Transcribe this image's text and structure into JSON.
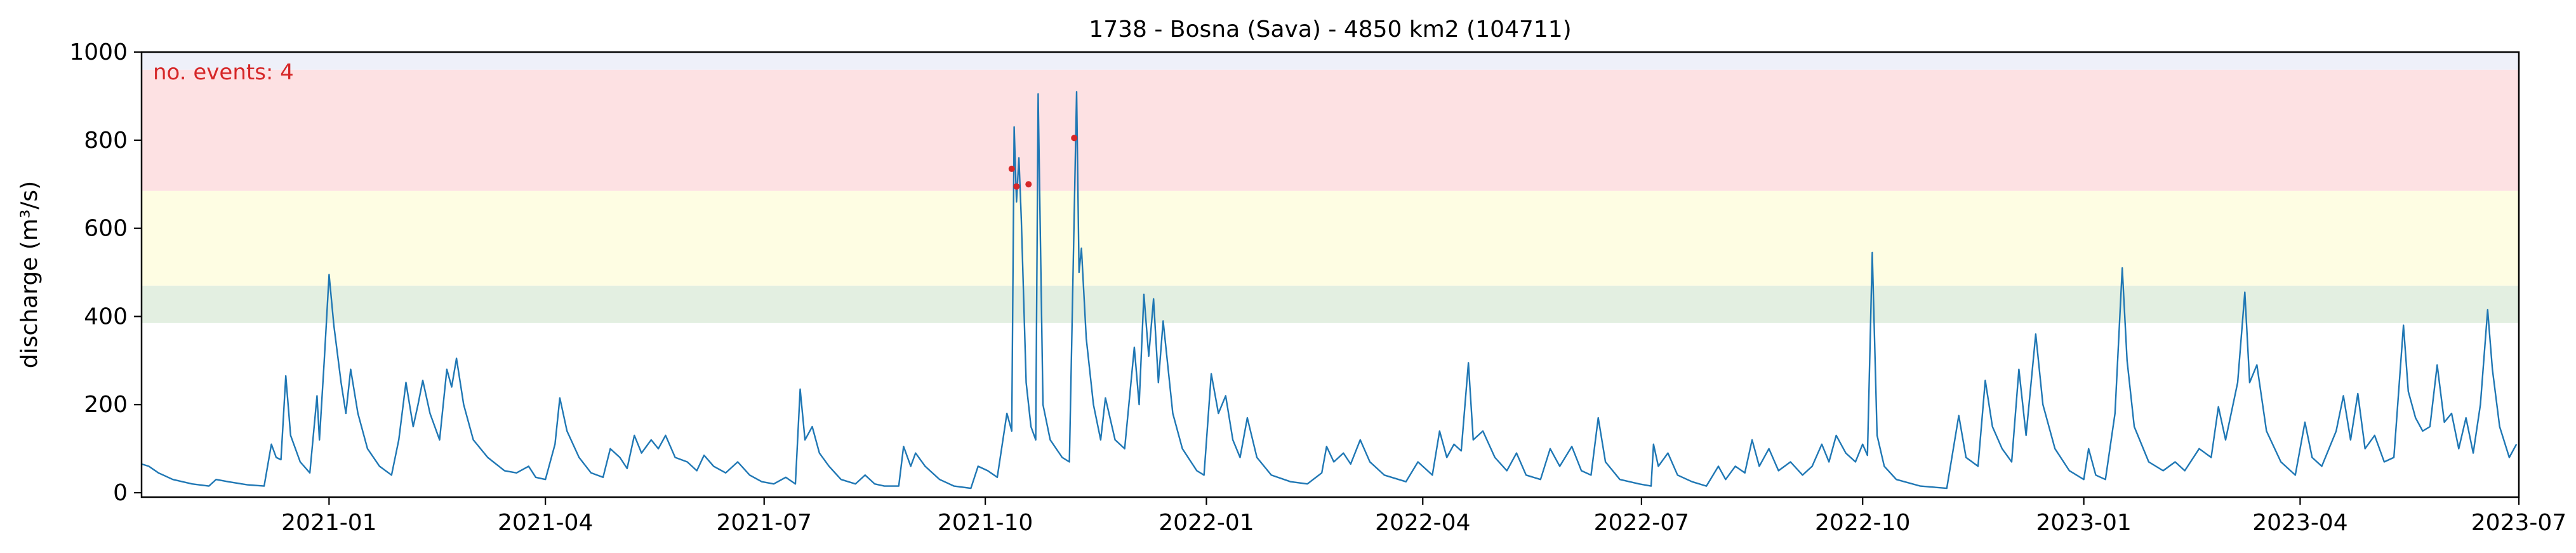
{
  "chart_data": {
    "type": "line",
    "title": "1738 - Bosna (Sava) - 4850 km2 (104711)",
    "xlabel": "",
    "ylabel": "discharge (m³/s)",
    "annotation": "no. events: 4",
    "xlim": [
      "2020-10-15",
      "2023-07-01"
    ],
    "ylim": [
      -10,
      1000
    ],
    "yticks": [
      0,
      200,
      400,
      600,
      800,
      1000
    ],
    "xticks": [
      "2021-01",
      "2021-04",
      "2021-07",
      "2021-10",
      "2022-01",
      "2022-04",
      "2022-07",
      "2022-10",
      "2023-01",
      "2023-04",
      "2023-07"
    ],
    "grid": false,
    "threshold_bands": [
      {
        "from": 385,
        "to": 470,
        "color": "#e3efe1"
      },
      {
        "from": 470,
        "to": 685,
        "color": "#fefde3"
      },
      {
        "from": 685,
        "to": 960,
        "color": "#fde1e3"
      },
      {
        "from": 960,
        "to": 1000,
        "color": "#eef0f9"
      }
    ],
    "series": [
      {
        "color": "#1f77b4",
        "points": [
          [
            "2020-10-15",
            65
          ],
          [
            "2020-10-18",
            60
          ],
          [
            "2020-10-22",
            45
          ],
          [
            "2020-10-28",
            30
          ],
          [
            "2020-11-05",
            20
          ],
          [
            "2020-11-12",
            15
          ],
          [
            "2020-11-15",
            30
          ],
          [
            "2020-11-20",
            25
          ],
          [
            "2020-11-28",
            18
          ],
          [
            "2020-12-05",
            15
          ],
          [
            "2020-12-08",
            110
          ],
          [
            "2020-12-10",
            80
          ],
          [
            "2020-12-12",
            75
          ],
          [
            "2020-12-14",
            265
          ],
          [
            "2020-12-16",
            130
          ],
          [
            "2020-12-20",
            70
          ],
          [
            "2020-12-24",
            45
          ],
          [
            "2020-12-27",
            220
          ],
          [
            "2020-12-28",
            120
          ],
          [
            "2020-12-30",
            300
          ],
          [
            "2021-01-01",
            495
          ],
          [
            "2021-01-03",
            380
          ],
          [
            "2021-01-06",
            250
          ],
          [
            "2021-01-08",
            180
          ],
          [
            "2021-01-10",
            280
          ],
          [
            "2021-01-13",
            180
          ],
          [
            "2021-01-17",
            100
          ],
          [
            "2021-01-22",
            60
          ],
          [
            "2021-01-27",
            40
          ],
          [
            "2021-01-30",
            120
          ],
          [
            "2021-02-02",
            250
          ],
          [
            "2021-02-05",
            150
          ],
          [
            "2021-02-07",
            200
          ],
          [
            "2021-02-09",
            255
          ],
          [
            "2021-02-12",
            180
          ],
          [
            "2021-02-16",
            120
          ],
          [
            "2021-02-19",
            280
          ],
          [
            "2021-02-21",
            240
          ],
          [
            "2021-02-23",
            305
          ],
          [
            "2021-02-26",
            200
          ],
          [
            "2021-03-02",
            120
          ],
          [
            "2021-03-08",
            80
          ],
          [
            "2021-03-15",
            50
          ],
          [
            "2021-03-20",
            45
          ],
          [
            "2021-03-25",
            60
          ],
          [
            "2021-03-28",
            35
          ],
          [
            "2021-04-01",
            30
          ],
          [
            "2021-04-05",
            110
          ],
          [
            "2021-04-07",
            215
          ],
          [
            "2021-04-10",
            140
          ],
          [
            "2021-04-15",
            80
          ],
          [
            "2021-04-20",
            45
          ],
          [
            "2021-04-25",
            35
          ],
          [
            "2021-04-28",
            100
          ],
          [
            "2021-05-02",
            80
          ],
          [
            "2021-05-05",
            55
          ],
          [
            "2021-05-08",
            130
          ],
          [
            "2021-05-11",
            90
          ],
          [
            "2021-05-15",
            120
          ],
          [
            "2021-05-18",
            100
          ],
          [
            "2021-05-21",
            130
          ],
          [
            "2021-05-25",
            80
          ],
          [
            "2021-05-30",
            70
          ],
          [
            "2021-06-03",
            50
          ],
          [
            "2021-06-06",
            85
          ],
          [
            "2021-06-10",
            60
          ],
          [
            "2021-06-15",
            45
          ],
          [
            "2021-06-20",
            70
          ],
          [
            "2021-06-25",
            40
          ],
          [
            "2021-06-30",
            25
          ],
          [
            "2021-07-05",
            20
          ],
          [
            "2021-07-10",
            35
          ],
          [
            "2021-07-14",
            20
          ],
          [
            "2021-07-16",
            235
          ],
          [
            "2021-07-18",
            120
          ],
          [
            "2021-07-21",
            150
          ],
          [
            "2021-07-24",
            90
          ],
          [
            "2021-07-28",
            60
          ],
          [
            "2021-08-02",
            30
          ],
          [
            "2021-08-08",
            20
          ],
          [
            "2021-08-12",
            40
          ],
          [
            "2021-08-16",
            20
          ],
          [
            "2021-08-20",
            15
          ],
          [
            "2021-08-26",
            15
          ],
          [
            "2021-08-28",
            105
          ],
          [
            "2021-08-31",
            60
          ],
          [
            "2021-09-02",
            90
          ],
          [
            "2021-09-06",
            60
          ],
          [
            "2021-09-12",
            30
          ],
          [
            "2021-09-18",
            15
          ],
          [
            "2021-09-25",
            10
          ],
          [
            "2021-09-28",
            60
          ],
          [
            "2021-10-02",
            50
          ],
          [
            "2021-10-06",
            35
          ],
          [
            "2021-10-10",
            180
          ],
          [
            "2021-10-12",
            140
          ],
          [
            "2021-10-13",
            830
          ],
          [
            "2021-10-14",
            660
          ],
          [
            "2021-10-15",
            760
          ],
          [
            "2021-10-16",
            620
          ],
          [
            "2021-10-18",
            250
          ],
          [
            "2021-10-20",
            150
          ],
          [
            "2021-10-22",
            120
          ],
          [
            "2021-10-23",
            905
          ],
          [
            "2021-10-25",
            200
          ],
          [
            "2021-10-28",
            120
          ],
          [
            "2021-11-02",
            80
          ],
          [
            "2021-11-05",
            70
          ],
          [
            "2021-11-08",
            910
          ],
          [
            "2021-11-09",
            500
          ],
          [
            "2021-11-10",
            555
          ],
          [
            "2021-11-12",
            350
          ],
          [
            "2021-11-15",
            200
          ],
          [
            "2021-11-18",
            120
          ],
          [
            "2021-11-20",
            215
          ],
          [
            "2021-11-24",
            120
          ],
          [
            "2021-11-28",
            100
          ],
          [
            "2021-12-02",
            330
          ],
          [
            "2021-12-04",
            200
          ],
          [
            "2021-12-06",
            450
          ],
          [
            "2021-12-08",
            310
          ],
          [
            "2021-12-10",
            440
          ],
          [
            "2021-12-12",
            250
          ],
          [
            "2021-12-14",
            390
          ],
          [
            "2021-12-18",
            180
          ],
          [
            "2021-12-22",
            100
          ],
          [
            "2021-12-28",
            50
          ],
          [
            "2021-12-31",
            40
          ],
          [
            "2022-01-03",
            270
          ],
          [
            "2022-01-06",
            180
          ],
          [
            "2022-01-09",
            220
          ],
          [
            "2022-01-12",
            120
          ],
          [
            "2022-01-15",
            80
          ],
          [
            "2022-01-18",
            170
          ],
          [
            "2022-01-22",
            80
          ],
          [
            "2022-01-28",
            40
          ],
          [
            "2022-02-05",
            25
          ],
          [
            "2022-02-12",
            20
          ],
          [
            "2022-02-18",
            45
          ],
          [
            "2022-02-20",
            105
          ],
          [
            "2022-02-23",
            70
          ],
          [
            "2022-02-27",
            90
          ],
          [
            "2022-03-02",
            65
          ],
          [
            "2022-03-06",
            120
          ],
          [
            "2022-03-10",
            70
          ],
          [
            "2022-03-16",
            40
          ],
          [
            "2022-03-25",
            25
          ],
          [
            "2022-03-30",
            70
          ],
          [
            "2022-04-05",
            40
          ],
          [
            "2022-04-08",
            140
          ],
          [
            "2022-04-11",
            80
          ],
          [
            "2022-04-14",
            110
          ],
          [
            "2022-04-17",
            95
          ],
          [
            "2022-04-20",
            295
          ],
          [
            "2022-04-22",
            120
          ],
          [
            "2022-04-26",
            140
          ],
          [
            "2022-05-01",
            80
          ],
          [
            "2022-05-06",
            50
          ],
          [
            "2022-05-10",
            90
          ],
          [
            "2022-05-14",
            40
          ],
          [
            "2022-05-20",
            30
          ],
          [
            "2022-05-24",
            100
          ],
          [
            "2022-05-28",
            60
          ],
          [
            "2022-06-02",
            105
          ],
          [
            "2022-06-06",
            50
          ],
          [
            "2022-06-10",
            40
          ],
          [
            "2022-06-13",
            170
          ],
          [
            "2022-06-16",
            70
          ],
          [
            "2022-06-22",
            30
          ],
          [
            "2022-06-30",
            20
          ],
          [
            "2022-07-05",
            15
          ],
          [
            "2022-07-06",
            110
          ],
          [
            "2022-07-08",
            60
          ],
          [
            "2022-07-12",
            90
          ],
          [
            "2022-07-16",
            40
          ],
          [
            "2022-07-22",
            25
          ],
          [
            "2022-07-28",
            15
          ],
          [
            "2022-08-02",
            60
          ],
          [
            "2022-08-05",
            30
          ],
          [
            "2022-08-09",
            60
          ],
          [
            "2022-08-13",
            45
          ],
          [
            "2022-08-16",
            120
          ],
          [
            "2022-08-19",
            60
          ],
          [
            "2022-08-23",
            100
          ],
          [
            "2022-08-27",
            50
          ],
          [
            "2022-09-01",
            70
          ],
          [
            "2022-09-06",
            40
          ],
          [
            "2022-09-10",
            60
          ],
          [
            "2022-09-14",
            110
          ],
          [
            "2022-09-17",
            70
          ],
          [
            "2022-09-20",
            130
          ],
          [
            "2022-09-24",
            90
          ],
          [
            "2022-09-28",
            70
          ],
          [
            "2022-10-01",
            110
          ],
          [
            "2022-10-03",
            85
          ],
          [
            "2022-10-05",
            545
          ],
          [
            "2022-10-07",
            130
          ],
          [
            "2022-10-10",
            60
          ],
          [
            "2022-10-15",
            30
          ],
          [
            "2022-10-25",
            15
          ],
          [
            "2022-11-05",
            10
          ],
          [
            "2022-11-10",
            175
          ],
          [
            "2022-11-13",
            80
          ],
          [
            "2022-11-18",
            60
          ],
          [
            "2022-11-21",
            255
          ],
          [
            "2022-11-24",
            150
          ],
          [
            "2022-11-28",
            100
          ],
          [
            "2022-12-02",
            70
          ],
          [
            "2022-12-05",
            280
          ],
          [
            "2022-12-08",
            130
          ],
          [
            "2022-12-12",
            360
          ],
          [
            "2022-12-15",
            200
          ],
          [
            "2022-12-20",
            100
          ],
          [
            "2022-12-26",
            50
          ],
          [
            "2023-01-01",
            30
          ],
          [
            "2023-01-03",
            100
          ],
          [
            "2023-01-06",
            40
          ],
          [
            "2023-01-10",
            30
          ],
          [
            "2023-01-14",
            180
          ],
          [
            "2023-01-17",
            510
          ],
          [
            "2023-01-19",
            300
          ],
          [
            "2023-01-22",
            150
          ],
          [
            "2023-01-28",
            70
          ],
          [
            "2023-02-03",
            50
          ],
          [
            "2023-02-08",
            70
          ],
          [
            "2023-02-12",
            50
          ],
          [
            "2023-02-18",
            100
          ],
          [
            "2023-02-23",
            80
          ],
          [
            "2023-02-26",
            195
          ],
          [
            "2023-03-01",
            120
          ],
          [
            "2023-03-06",
            250
          ],
          [
            "2023-03-09",
            455
          ],
          [
            "2023-03-11",
            250
          ],
          [
            "2023-03-14",
            290
          ],
          [
            "2023-03-18",
            140
          ],
          [
            "2023-03-24",
            70
          ],
          [
            "2023-03-30",
            40
          ],
          [
            "2023-04-03",
            160
          ],
          [
            "2023-04-06",
            80
          ],
          [
            "2023-04-10",
            60
          ],
          [
            "2023-04-16",
            140
          ],
          [
            "2023-04-19",
            220
          ],
          [
            "2023-04-22",
            120
          ],
          [
            "2023-04-25",
            225
          ],
          [
            "2023-04-28",
            100
          ],
          [
            "2023-05-02",
            130
          ],
          [
            "2023-05-06",
            70
          ],
          [
            "2023-05-10",
            80
          ],
          [
            "2023-05-14",
            380
          ],
          [
            "2023-05-16",
            230
          ],
          [
            "2023-05-19",
            170
          ],
          [
            "2023-05-22",
            140
          ],
          [
            "2023-05-25",
            150
          ],
          [
            "2023-05-28",
            290
          ],
          [
            "2023-05-31",
            160
          ],
          [
            "2023-06-03",
            180
          ],
          [
            "2023-06-06",
            100
          ],
          [
            "2023-06-09",
            170
          ],
          [
            "2023-06-12",
            90
          ],
          [
            "2023-06-15",
            200
          ],
          [
            "2023-06-18",
            415
          ],
          [
            "2023-06-20",
            280
          ],
          [
            "2023-06-23",
            150
          ],
          [
            "2023-06-27",
            80
          ],
          [
            "2023-06-30",
            110
          ]
        ]
      }
    ],
    "events": [
      [
        "2021-10-12",
        735
      ],
      [
        "2021-10-14",
        695
      ],
      [
        "2021-10-19",
        700
      ],
      [
        "2021-11-07",
        805
      ]
    ],
    "event_color": "#d62728"
  }
}
